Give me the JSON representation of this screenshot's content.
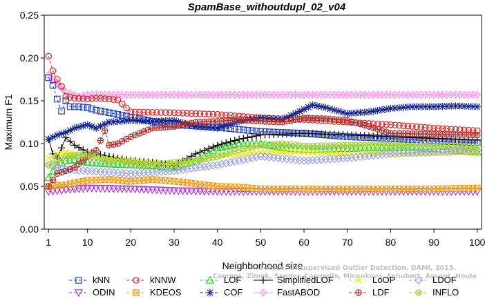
{
  "chart_data": {
    "type": "line",
    "title": "SpamBase_withoutdupl_02_v04",
    "xlabel": "Neighborhood size",
    "ylabel": "Maximum F1",
    "xlim": [
      0,
      101
    ],
    "ylim": [
      0.0,
      0.25
    ],
    "xticks": [
      1,
      10,
      20,
      30,
      40,
      50,
      60,
      70,
      80,
      90,
      100
    ],
    "yticks": [
      "0.00",
      "0.05",
      "0.10",
      "0.15",
      "0.20",
      "0.25"
    ],
    "grid": false,
    "legend_position": "bottom",
    "watermark": [
      "Source: Unsupervised Outlier Detection. DAMI, 2015.",
      "Campos, Zimek, Sander, Campello, Micenkova, Schubert, Assent, Houle"
    ],
    "series": [
      {
        "name": "kNN",
        "color": "#1f3fbf",
        "marker": "square",
        "dash": "4,3",
        "x": [
          1,
          2,
          3,
          4,
          5,
          6,
          8,
          10,
          12,
          15,
          20,
          25,
          30,
          40,
          50,
          60,
          70,
          80,
          90,
          100
        ],
        "y": [
          0.177,
          0.168,
          0.152,
          0.138,
          0.15,
          0.143,
          0.143,
          0.142,
          0.139,
          0.136,
          0.131,
          0.126,
          0.122,
          0.119,
          0.114,
          0.112,
          0.108,
          0.106,
          0.103,
          0.101
        ]
      },
      {
        "name": "kNNW",
        "color": "#e02020",
        "marker": "circle",
        "dash": "4,3",
        "x": [
          1,
          2,
          3,
          4,
          5,
          7,
          10,
          12,
          15,
          17,
          20,
          30,
          40,
          50,
          60,
          70,
          80,
          90,
          100
        ],
        "y": [
          0.202,
          0.185,
          0.175,
          0.167,
          0.155,
          0.153,
          0.152,
          0.153,
          0.152,
          0.151,
          0.137,
          0.136,
          0.134,
          0.13,
          0.128,
          0.125,
          0.122,
          0.118,
          0.115
        ]
      },
      {
        "name": "LOF",
        "color": "#20d020",
        "marker": "triangle",
        "dash": "4,3",
        "x": [
          1,
          3,
          5,
          7,
          10,
          15,
          20,
          25,
          30,
          35,
          40,
          45,
          50,
          55,
          60,
          70,
          80,
          90,
          100
        ],
        "y": [
          0.06,
          0.075,
          0.08,
          0.081,
          0.078,
          0.076,
          0.075,
          0.074,
          0.072,
          0.08,
          0.095,
          0.1,
          0.1,
          0.095,
          0.093,
          0.094,
          0.096,
          0.094,
          0.09
        ]
      },
      {
        "name": "SimplifiedLOF",
        "color": "#000000",
        "marker": "plus",
        "dash": "",
        "x": [
          1,
          2,
          3,
          5,
          7,
          10,
          15,
          20,
          25,
          30,
          35,
          40,
          45,
          50,
          55,
          60,
          70,
          80,
          90,
          100
        ],
        "y": [
          0.105,
          0.088,
          0.083,
          0.107,
          0.098,
          0.09,
          0.085,
          0.08,
          0.078,
          0.074,
          0.088,
          0.098,
          0.105,
          0.11,
          0.111,
          0.112,
          0.11,
          0.108,
          0.106,
          0.104
        ]
      },
      {
        "name": "LoOP",
        "color": "#e6e600",
        "marker": "x",
        "dash": "4,3",
        "x": [
          1,
          3,
          5,
          10,
          20,
          30,
          40,
          50,
          60,
          70,
          80,
          90,
          100
        ],
        "y": [
          0.083,
          0.088,
          0.09,
          0.085,
          0.08,
          0.075,
          0.085,
          0.09,
          0.09,
          0.088,
          0.088,
          0.089,
          0.09
        ]
      },
      {
        "name": "LDOF",
        "color": "#9aa0e6",
        "marker": "diamond",
        "dash": "4,3",
        "x": [
          1,
          5,
          10,
          20,
          30,
          40,
          50,
          60,
          70,
          80,
          90,
          100
        ],
        "y": [
          0.075,
          0.07,
          0.068,
          0.065,
          0.068,
          0.075,
          0.085,
          0.08,
          0.083,
          0.088,
          0.09,
          0.092
        ]
      },
      {
        "name": "ODIN",
        "color": "#b030e0",
        "marker": "triangle-down",
        "dash": "4,3",
        "x": [
          1,
          5,
          10,
          20,
          30,
          40,
          50,
          60,
          70,
          80,
          90,
          100
        ],
        "y": [
          0.044,
          0.046,
          0.048,
          0.047,
          0.045,
          0.044,
          0.044,
          0.044,
          0.044,
          0.044,
          0.044,
          0.044
        ]
      },
      {
        "name": "KDEOS",
        "color": "#f0a020",
        "marker": "square-x",
        "dash": "4,3",
        "x": [
          1,
          5,
          10,
          15,
          20,
          25,
          30,
          35,
          40,
          45,
          50,
          60,
          70,
          80,
          90,
          100
        ],
        "y": [
          0.05,
          0.052,
          0.057,
          0.058,
          0.056,
          0.058,
          0.056,
          0.053,
          0.05,
          0.049,
          0.047,
          0.047,
          0.047,
          0.047,
          0.047,
          0.048
        ]
      },
      {
        "name": "COF",
        "color": "#10208a",
        "marker": "star",
        "dash": "4,3",
        "x": [
          1,
          3,
          5,
          7,
          10,
          12,
          15,
          20,
          25,
          30,
          35,
          40,
          45,
          50,
          55,
          60,
          62,
          65,
          70,
          75,
          80,
          85,
          90,
          95,
          100
        ],
        "y": [
          0.105,
          0.11,
          0.113,
          0.118,
          0.122,
          0.118,
          0.125,
          0.127,
          0.126,
          0.127,
          0.12,
          0.118,
          0.126,
          0.13,
          0.128,
          0.14,
          0.145,
          0.142,
          0.135,
          0.137,
          0.141,
          0.143,
          0.143,
          0.144,
          0.143
        ]
      },
      {
        "name": "FastABOD",
        "color": "#f4a0e8",
        "marker": "diamond-plus",
        "dash": "",
        "x": [
          1,
          3,
          5,
          8,
          10,
          20,
          30,
          40,
          50,
          60,
          70,
          80,
          90,
          100
        ],
        "y": [
          0.18,
          0.17,
          0.16,
          0.155,
          0.157,
          0.157,
          0.157,
          0.157,
          0.157,
          0.157,
          0.157,
          0.157,
          0.157,
          0.157
        ]
      },
      {
        "name": "LDF",
        "color": "#b03030",
        "marker": "circle-plus",
        "dash": "4,3",
        "x": [
          1,
          3,
          5,
          7,
          10,
          12,
          14,
          15,
          17,
          20,
          25,
          30,
          35,
          40,
          45,
          50,
          55,
          60,
          65,
          70,
          75,
          80,
          90,
          100
        ],
        "y": [
          0.05,
          0.065,
          0.068,
          0.072,
          0.085,
          0.092,
          0.115,
          0.098,
          0.1,
          0.108,
          0.118,
          0.12,
          0.125,
          0.126,
          0.128,
          0.126,
          0.125,
          0.13,
          0.129,
          0.127,
          0.12,
          0.112,
          0.111,
          0.11
        ]
      },
      {
        "name": "INFLO",
        "color": "#a0d040",
        "marker": "circle-x",
        "dash": "4,3",
        "x": [
          1,
          5,
          10,
          15,
          20,
          25,
          30,
          35,
          40,
          45,
          50,
          55,
          60,
          70,
          80,
          90,
          100
        ],
        "y": [
          0.075,
          0.085,
          0.088,
          0.08,
          0.078,
          0.075,
          0.078,
          0.08,
          0.085,
          0.093,
          0.098,
          0.1,
          0.097,
          0.098,
          0.098,
          0.097,
          0.096
        ]
      }
    ]
  }
}
